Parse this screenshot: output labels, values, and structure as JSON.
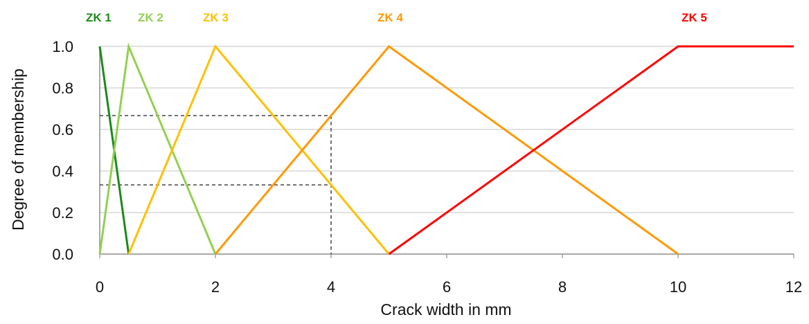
{
  "chart_data": {
    "type": "line",
    "title": "",
    "xlabel": "Crack width in mm",
    "ylabel": "Degree of membership",
    "xlim": [
      0,
      12
    ],
    "ylim": [
      0,
      1
    ],
    "x_ticks": [
      "0",
      "2",
      "4",
      "6",
      "8",
      "10",
      "12"
    ],
    "y_ticks": [
      "0.0",
      "0.2",
      "0.4",
      "0.6",
      "0.8",
      "1.0"
    ],
    "grid": true,
    "series": [
      {
        "name": "ZK 1",
        "color": "#1a8a1a",
        "points": [
          [
            0,
            1.0
          ],
          [
            0.5,
            0.0
          ]
        ],
        "label_x": 0
      },
      {
        "name": "ZK 2",
        "color": "#92d050",
        "points": [
          [
            0,
            0.0
          ],
          [
            0.5,
            1.0
          ],
          [
            2,
            0.0
          ]
        ],
        "label_x": 1
      },
      {
        "name": "ZK 3",
        "color": "#ffc000",
        "points": [
          [
            0.5,
            0.0
          ],
          [
            2,
            1.0
          ],
          [
            5,
            0.0
          ]
        ],
        "label_x": 2
      },
      {
        "name": "ZK 4",
        "color": "#ff9900",
        "points": [
          [
            2,
            0.0
          ],
          [
            5,
            1.0
          ],
          [
            10,
            0.0
          ]
        ],
        "label_x": 5
      },
      {
        "name": "ZK 5",
        "color": "#ff0000",
        "points": [
          [
            5,
            0.0
          ],
          [
            10,
            1.0
          ],
          [
            12,
            1.0
          ]
        ],
        "label_x": 10
      }
    ],
    "annotations": {
      "vertical_x": 4,
      "horizontal_levels": [
        0.667,
        0.333
      ]
    }
  }
}
